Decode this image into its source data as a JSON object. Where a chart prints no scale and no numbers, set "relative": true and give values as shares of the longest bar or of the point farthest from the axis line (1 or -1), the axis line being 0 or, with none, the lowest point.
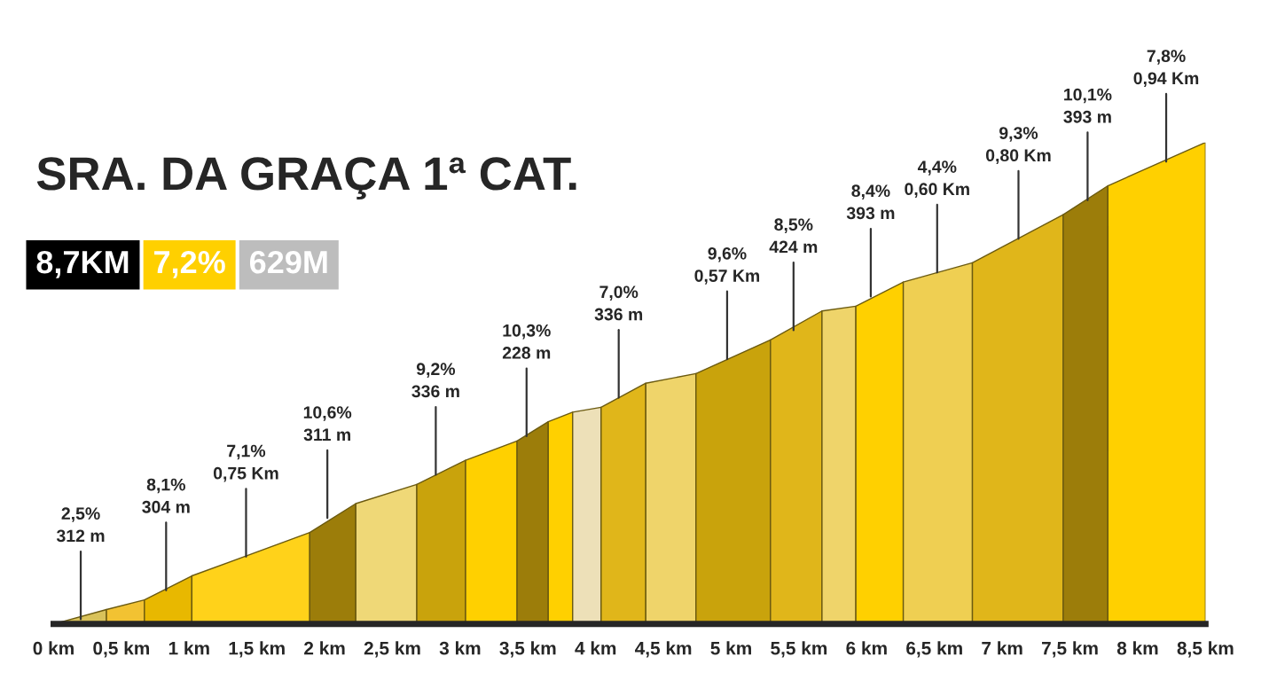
{
  "chart_data": {
    "type": "area",
    "title": "SRA. DA GRAÇA 1ª CAT.",
    "relative": true,
    "grid": false,
    "legend": false,
    "xlim": [
      0,
      8.5
    ],
    "xticks": [
      {
        "value": 0,
        "label": "0 km"
      },
      {
        "value": 0.5,
        "label": "0,5 km"
      },
      {
        "value": 1,
        "label": "1 km"
      },
      {
        "value": 1.5,
        "label": "1,5 km"
      },
      {
        "value": 2,
        "label": "2 km"
      },
      {
        "value": 2.5,
        "label": "2,5 km"
      },
      {
        "value": 3,
        "label": "3 km"
      },
      {
        "value": 3.5,
        "label": "3,5 km"
      },
      {
        "value": 4,
        "label": "4 km"
      },
      {
        "value": 4.5,
        "label": "4,5 km"
      },
      {
        "value": 5,
        "label": "5 km"
      },
      {
        "value": 5.5,
        "label": "5,5 km"
      },
      {
        "value": 6,
        "label": "6 km"
      },
      {
        "value": 6.5,
        "label": "6,5 km"
      },
      {
        "value": 7,
        "label": "7 km"
      },
      {
        "value": 7.5,
        "label": "7,5 km"
      },
      {
        "value": 8,
        "label": "8 km"
      },
      {
        "value": 8.5,
        "label": "8,5 km"
      }
    ],
    "series": [
      {
        "color": "#d9c25a",
        "x": [
          0,
          0.39
        ],
        "values": [
          0,
          0.03
        ]
      },
      {
        "color": "#f2c232",
        "x": [
          0.39,
          0.67
        ],
        "values": [
          0.03,
          0.05
        ]
      },
      {
        "color": "#e8b800",
        "x": [
          0.67,
          1.02
        ],
        "values": [
          0.05,
          0.1
        ]
      },
      {
        "color": "#ffd21a",
        "x": [
          1.02,
          1.89
        ],
        "values": [
          0.1,
          0.19
        ]
      },
      {
        "color": "#9c7d0a",
        "x": [
          1.89,
          2.23
        ],
        "values": [
          0.19,
          0.25
        ]
      },
      {
        "color": "#efd877",
        "x": [
          2.23,
          2.68
        ],
        "values": [
          0.25,
          0.29
        ]
      },
      {
        "color": "#c9a30c",
        "x": [
          2.68,
          3.04
        ],
        "values": [
          0.29,
          0.34
        ]
      },
      {
        "color": "#ffd000",
        "x": [
          3.04,
          3.42
        ],
        "values": [
          0.34,
          0.38
        ]
      },
      {
        "color": "#9c7d0a",
        "x": [
          3.42,
          3.65
        ],
        "values": [
          0.38,
          0.42
        ]
      },
      {
        "color": "#ffd000",
        "x": [
          3.65,
          3.83
        ],
        "values": [
          0.42,
          0.44
        ]
      },
      {
        "color": "#ede0b8",
        "x": [
          3.83,
          4.04
        ],
        "values": [
          0.44,
          0.45
        ]
      },
      {
        "color": "#e0b61a",
        "x": [
          4.04,
          4.37
        ],
        "values": [
          0.45,
          0.5
        ]
      },
      {
        "color": "#efd46a",
        "x": [
          4.37,
          4.74
        ],
        "values": [
          0.5,
          0.52
        ]
      },
      {
        "color": "#c9a30c",
        "x": [
          4.74,
          5.29
        ],
        "values": [
          0.52,
          0.59
        ]
      },
      {
        "color": "#e0b61a",
        "x": [
          5.29,
          5.67
        ],
        "values": [
          0.59,
          0.65
        ]
      },
      {
        "color": "#efd46a",
        "x": [
          5.67,
          5.92
        ],
        "values": [
          0.65,
          0.66
        ]
      },
      {
        "color": "#ffd000",
        "x": [
          5.92,
          6.27
        ],
        "values": [
          0.66,
          0.71
        ]
      },
      {
        "color": "#efcf52",
        "x": [
          6.27,
          6.78
        ],
        "values": [
          0.71,
          0.75
        ]
      },
      {
        "color": "#e0b61a",
        "x": [
          6.78,
          7.45
        ],
        "values": [
          0.75,
          0.85
        ]
      },
      {
        "color": "#9c7d0a",
        "x": [
          7.45,
          7.78
        ],
        "values": [
          0.85,
          0.91
        ]
      },
      {
        "color": "#ffd000",
        "x": [
          7.78,
          8.5
        ],
        "values": [
          0.91,
          1
        ]
      }
    ],
    "annotations": [
      "8,7KM",
      "7,2%",
      "629M",
      {
        "text": "2,5%\n312 m",
        "x": 0.2,
        "y": 0.01
      },
      {
        "text": "8,1%\n304 m",
        "x": 0.83,
        "y": 0.07
      },
      {
        "text": "7,1%\n0,75 Km",
        "x": 1.42,
        "y": 0.14
      },
      {
        "text": "10,6%\n311 m",
        "x": 2.02,
        "y": 0.22
      },
      {
        "text": "9,2%\n336 m",
        "x": 2.82,
        "y": 0.31
      },
      {
        "text": "10,3%\n228 m",
        "x": 3.49,
        "y": 0.39
      },
      {
        "text": "7,0%\n336 m",
        "x": 4.17,
        "y": 0.47
      },
      {
        "text": "9,6%\n0,57 Km",
        "x": 4.97,
        "y": 0.55
      },
      {
        "text": "8,5%\n424 m",
        "x": 5.46,
        "y": 0.61
      },
      {
        "text": "8,4%\n393 m",
        "x": 6.03,
        "y": 0.68
      },
      {
        "text": "4,4%\n0,60 Km",
        "x": 6.52,
        "y": 0.73
      },
      {
        "text": "9,3%\n0,80 Km",
        "x": 7.12,
        "y": 0.8
      },
      {
        "text": "10,1%\n393 m",
        "x": 7.63,
        "y": 0.88
      },
      {
        "text": "7,8%\n0,94 Km",
        "x": 8.21,
        "y": 0.96
      }
    ]
  }
}
